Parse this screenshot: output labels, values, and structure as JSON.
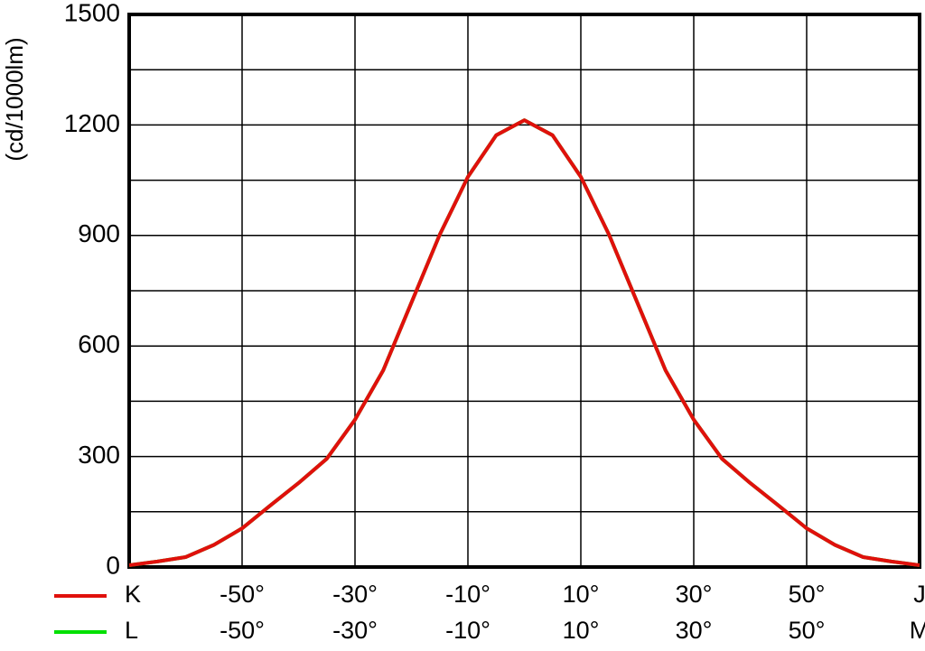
{
  "chart_data": {
    "type": "line",
    "y_label": "(cd/1000lm)",
    "x": [
      -70,
      -65,
      -60,
      -55,
      -50,
      -45,
      -40,
      -35,
      -30,
      -25,
      -20,
      -15,
      -10,
      -5,
      0,
      5,
      10,
      15,
      20,
      25,
      30,
      35,
      40,
      45,
      50,
      55,
      60,
      65,
      70
    ],
    "series": [
      {
        "name": "L",
        "color": "#00e000",
        "values": [
          5,
          15,
          27,
          60,
          105,
          167,
          228,
          294,
          400,
          534,
          718,
          902,
          1059,
          1172,
          1213,
          1172,
          1059,
          902,
          718,
          534,
          400,
          294,
          228,
          167,
          105,
          60,
          27,
          15,
          5
        ]
      },
      {
        "name": "K",
        "color": "#e0100c",
        "values": [
          5,
          15,
          27,
          60,
          105,
          167,
          228,
          294,
          400,
          534,
          718,
          902,
          1059,
          1172,
          1213,
          1172,
          1059,
          902,
          718,
          534,
          400,
          294,
          228,
          167,
          105,
          60,
          27,
          15,
          5
        ]
      }
    ],
    "xlim": [
      -70,
      70
    ],
    "ylim": [
      0,
      1500
    ],
    "yticks": [
      0,
      300,
      600,
      900,
      1200,
      1500
    ],
    "y_minor_grid": [
      150,
      450,
      750,
      1050,
      1350
    ],
    "xticks": [
      {
        "value": -50,
        "label": "-50°"
      },
      {
        "value": -30,
        "label": "-30°"
      },
      {
        "value": -10,
        "label": "-10°"
      },
      {
        "value": 10,
        "label": "10°"
      },
      {
        "value": 30,
        "label": "30°"
      },
      {
        "value": 50,
        "label": "50°"
      },
      {
        "value": 70,
        "label": "J"
      }
    ],
    "xticks_row2": [
      {
        "value": -50,
        "label": "-50°"
      },
      {
        "value": -30,
        "label": "-30°"
      },
      {
        "value": -10,
        "label": "-10°"
      },
      {
        "value": 10,
        "label": "10°"
      },
      {
        "value": 30,
        "label": "30°"
      },
      {
        "value": 50,
        "label": "50°"
      },
      {
        "value": 70,
        "label": "M"
      }
    ],
    "grid": true
  }
}
